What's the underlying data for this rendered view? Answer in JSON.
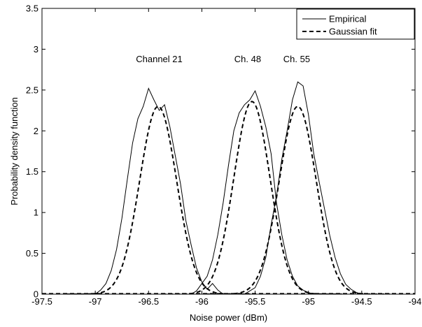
{
  "chart_data": {
    "type": "line",
    "title": "",
    "xlabel": "Noise power (dBm)",
    "ylabel": "Probability density function",
    "xlim": [
      -97.5,
      -94
    ],
    "ylim": [
      0,
      3.5
    ],
    "x_ticks": [
      -97.5,
      -97,
      -96.5,
      -96,
      -95.5,
      -95,
      -94.5,
      -94
    ],
    "x_tick_labels": [
      "-97.5",
      "-97",
      "-96.5",
      "-96",
      "-95.5",
      "-95",
      "-94.5",
      "-94"
    ],
    "y_ticks": [
      0,
      0.5,
      1,
      1.5,
      2,
      2.5,
      3,
      3.5
    ],
    "y_tick_labels": [
      "0",
      "0.5",
      "1",
      "1.5",
      "2",
      "2.5",
      "3",
      "3.5"
    ],
    "grid": false,
    "legend_position": "top-right",
    "annotations": [
      {
        "text": "Channel 21",
        "x": -96.4,
        "y": 2.88
      },
      {
        "text": "Ch. 48",
        "x": -95.57,
        "y": 2.88
      },
      {
        "text": "Ch. 55",
        "x": -95.11,
        "y": 2.88
      }
    ],
    "series": [
      {
        "name": "Empirical",
        "style": "solid",
        "channels": [
          {
            "label": "Channel 21",
            "x": [
              -97.0,
              -96.95,
              -96.9,
              -96.85,
              -96.8,
              -96.75,
              -96.7,
              -96.65,
              -96.6,
              -96.55,
              -96.5,
              -96.45,
              -96.4,
              -96.35,
              -96.3,
              -96.25,
              -96.2,
              -96.15,
              -96.1,
              -96.05,
              -96.0,
              -95.95,
              -95.9,
              -95.85,
              -95.8
            ],
            "values": [
              0.0,
              0.05,
              0.13,
              0.29,
              0.55,
              0.93,
              1.4,
              1.85,
              2.15,
              2.3,
              2.52,
              2.38,
              2.25,
              2.32,
              2.05,
              1.7,
              1.35,
              0.9,
              0.6,
              0.32,
              0.15,
              0.06,
              0.13,
              0.05,
              0.0
            ]
          },
          {
            "label": "Ch. 48",
            "x": [
              -96.1,
              -96.05,
              -96.0,
              -95.95,
              -95.9,
              -95.85,
              -95.8,
              -95.75,
              -95.7,
              -95.65,
              -95.6,
              -95.55,
              -95.5,
              -95.45,
              -95.4,
              -95.35,
              -95.3,
              -95.25,
              -95.2,
              -95.15,
              -95.1,
              -95.05,
              -95.0,
              -94.95
            ],
            "values": [
              0.0,
              0.04,
              0.13,
              0.22,
              0.42,
              0.73,
              1.12,
              1.58,
              2.0,
              2.22,
              2.32,
              2.38,
              2.49,
              2.3,
              2.05,
              1.72,
              1.12,
              0.73,
              0.42,
              0.22,
              0.1,
              0.05,
              0.02,
              0.0
            ]
          },
          {
            "label": "Ch. 55",
            "x": [
              -95.6,
              -95.55,
              -95.5,
              -95.45,
              -95.4,
              -95.35,
              -95.3,
              -95.25,
              -95.2,
              -95.15,
              -95.1,
              -95.05,
              -95.0,
              -94.95,
              -94.9,
              -94.85,
              -94.8,
              -94.75,
              -94.7,
              -94.65,
              -94.6,
              -94.55,
              -94.5
            ],
            "values": [
              0.0,
              0.04,
              0.08,
              0.22,
              0.45,
              0.85,
              1.2,
              1.65,
              2.0,
              2.38,
              2.6,
              2.55,
              2.2,
              1.72,
              1.38,
              1.05,
              0.72,
              0.45,
              0.25,
              0.12,
              0.06,
              0.02,
              0.0
            ]
          }
        ]
      },
      {
        "name": "Gaussian fit",
        "style": "dashed",
        "channels": [
          {
            "label": "Channel 21",
            "mean": -96.41,
            "peak": 2.3,
            "sigma": 0.173
          },
          {
            "label": "Ch. 48",
            "mean": -95.53,
            "peak": 2.36,
            "sigma": 0.169
          },
          {
            "label": "Ch. 55",
            "mean": -95.1,
            "peak": 2.3,
            "sigma": 0.173
          }
        ]
      }
    ]
  }
}
